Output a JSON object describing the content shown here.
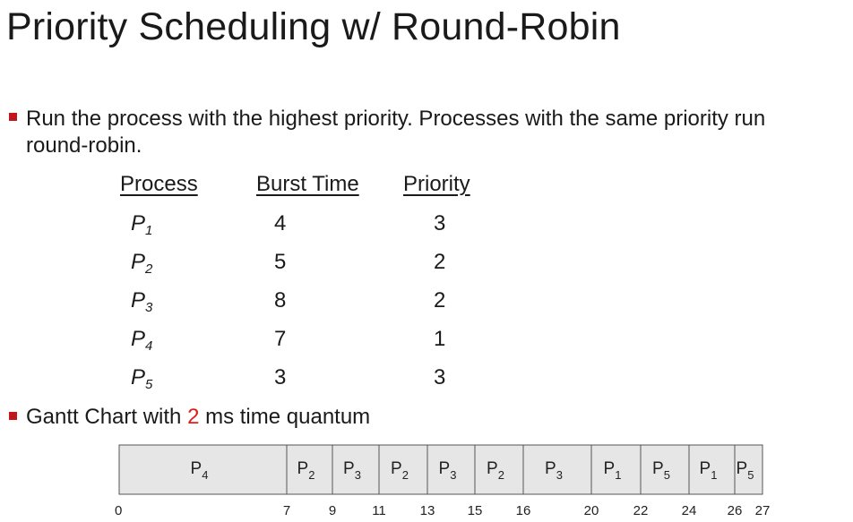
{
  "title": "Priority Scheduling w/ Round-Robin",
  "bullets": [
    {
      "line1": "Run the process with the highest priority. Processes with the same priority run",
      "line2": "round-robin."
    },
    {
      "prefix": "Gantt Chart with ",
      "highlight": "2",
      "suffix": " ms time quantum"
    }
  ],
  "table": {
    "headers": [
      "Process",
      "Burst Time",
      "Priority"
    ],
    "rows": [
      {
        "process": "P",
        "sub": "1",
        "burst": "4",
        "priority": "3"
      },
      {
        "process": "P",
        "sub": "2",
        "burst": "5",
        "priority": "2"
      },
      {
        "process": "P",
        "sub": "3",
        "burst": "8",
        "priority": "2"
      },
      {
        "process": "P",
        "sub": "4",
        "burst": "7",
        "priority": "1"
      },
      {
        "process": "P",
        "sub": "5",
        "burst": "3",
        "priority": "3"
      }
    ]
  },
  "gantt": {
    "start": 0,
    "segments": [
      {
        "label": "P",
        "sub": "4",
        "start": 0,
        "end": 7
      },
      {
        "label": "P",
        "sub": "2",
        "start": 7,
        "end": 9
      },
      {
        "label": "P",
        "sub": "3",
        "start": 9,
        "end": 11
      },
      {
        "label": "P",
        "sub": "2",
        "start": 11,
        "end": 13
      },
      {
        "label": "P",
        "sub": "3",
        "start": 13,
        "end": 15
      },
      {
        "label": "P",
        "sub": "2",
        "start": 15,
        "end": 16
      },
      {
        "label": "P",
        "sub": "3",
        "start": 16,
        "end": 20
      },
      {
        "label": "P",
        "sub": "1",
        "start": 20,
        "end": 22
      },
      {
        "label": "P",
        "sub": "5",
        "start": 22,
        "end": 24
      },
      {
        "label": "P",
        "sub": "1",
        "start": 24,
        "end": 26
      },
      {
        "label": "P",
        "sub": "5",
        "start": 26,
        "end": 27
      }
    ],
    "ticks": [
      "0",
      "7",
      "9",
      "11",
      "13",
      "15",
      "16",
      "20",
      "22",
      "24",
      "26",
      "27"
    ],
    "fill_color": "#e6e6e6",
    "border_color": "#555555"
  }
}
